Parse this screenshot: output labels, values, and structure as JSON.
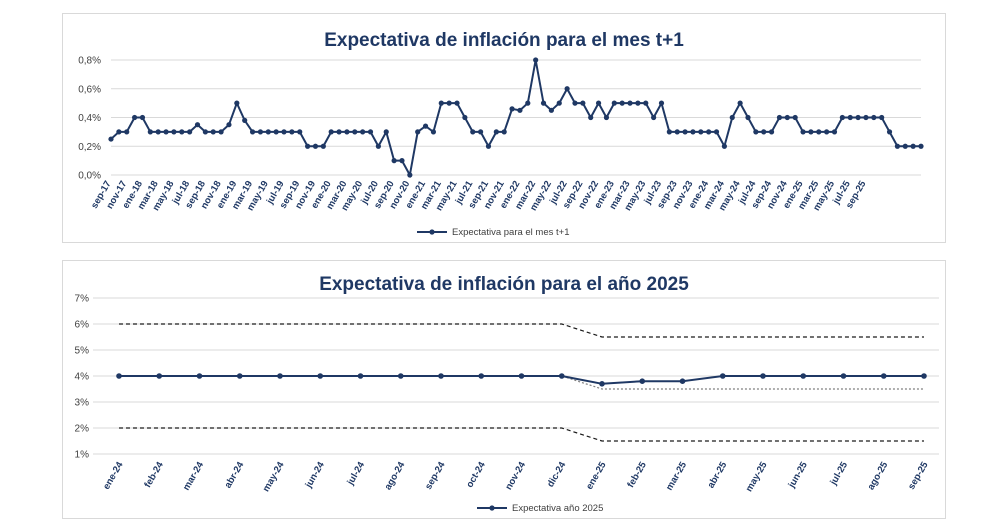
{
  "chart_data": [
    {
      "type": "line",
      "title": "Expectativa de inflación para el mes t+1",
      "ylim": [
        0,
        0.8
      ],
      "yticks": [
        "0,0%",
        "0,2%",
        "0,4%",
        "0,6%",
        "0,8%"
      ],
      "grid": true,
      "legend_position": "bottom",
      "x_tick_labels": [
        "sep-17",
        "nov-17",
        "ene-18",
        "mar-18",
        "may-18",
        "jul-18",
        "sep-18",
        "nov-18",
        "ene-19",
        "mar-19",
        "may-19",
        "jul-19",
        "sep-19",
        "nov-19",
        "ene-20",
        "mar-20",
        "may-20",
        "jul-20",
        "sep-20",
        "nov-20",
        "ene-21",
        "mar-21",
        "may-21",
        "jul-21",
        "sep-21",
        "nov-21",
        "ene-22",
        "mar-22",
        "may-22",
        "jul-22",
        "sep-22",
        "nov-22",
        "ene-23",
        "mar-23",
        "may-23",
        "jul-23",
        "sep-23",
        "nov-23",
        "ene-24",
        "mar-24",
        "may-24",
        "jul-24",
        "sep-24",
        "nov-24",
        "ene-25",
        "mar-25",
        "may-25",
        "jul-25",
        "sep-25"
      ],
      "series": [
        {
          "name": "Expectativa para el mes t+1",
          "color": "#1f3864",
          "values": [
            0.25,
            0.3,
            0.3,
            0.4,
            0.4,
            0.3,
            0.3,
            0.3,
            0.3,
            0.3,
            0.3,
            0.35,
            0.3,
            0.3,
            0.3,
            0.35,
            0.5,
            0.38,
            0.3,
            0.3,
            0.3,
            0.3,
            0.3,
            0.3,
            0.3,
            0.2,
            0.2,
            0.2,
            0.3,
            0.3,
            0.3,
            0.3,
            0.3,
            0.3,
            0.2,
            0.3,
            0.1,
            0.1,
            0.0,
            0.3,
            0.34,
            0.3,
            0.5,
            0.5,
            0.5,
            0.4,
            0.3,
            0.3,
            0.2,
            0.3,
            0.3,
            0.46,
            0.45,
            0.5,
            0.8,
            0.5,
            0.45,
            0.5,
            0.6,
            0.5,
            0.5,
            0.4,
            0.5,
            0.4,
            0.5,
            0.5,
            0.5,
            0.5,
            0.5,
            0.4,
            0.5,
            0.3,
            0.3,
            0.3,
            0.3,
            0.3,
            0.3,
            0.3,
            0.2,
            0.4,
            0.5,
            0.4,
            0.3,
            0.3,
            0.3,
            0.4,
            0.4,
            0.4,
            0.3,
            0.3,
            0.3,
            0.3,
            0.3,
            0.4,
            0.4,
            0.4,
            0.4,
            0.4,
            0.4,
            0.3,
            0.2,
            0.2,
            0.2,
            0.2
          ]
        }
      ]
    },
    {
      "type": "line",
      "title": "Expectativa de inflación para el año 2025",
      "ylim": [
        1,
        7
      ],
      "yticks": [
        "1%",
        "2%",
        "3%",
        "4%",
        "5%",
        "6%",
        "7%"
      ],
      "grid": true,
      "legend_position": "bottom",
      "categories": [
        "ene-24",
        "feb-24",
        "mar-24",
        "abr-24",
        "may-24",
        "jun-24",
        "jul-24",
        "ago-24",
        "sep-24",
        "oct-24",
        "nov-24",
        "dic-24",
        "ene-25",
        "feb-25",
        "mar-25",
        "abr-25",
        "may-25",
        "jun-25",
        "jul-25",
        "ago-25",
        "sep-25"
      ],
      "series": [
        {
          "name": "Expectativa año 2025",
          "color": "#1f3864",
          "values": [
            4,
            4,
            4,
            4,
            4,
            4,
            4,
            4,
            4,
            4,
            4,
            4,
            3.7,
            3.8,
            3.8,
            4,
            4,
            4,
            4,
            4,
            4
          ]
        }
      ],
      "reference_lines": [
        {
          "style": "dashed",
          "color": "#1a1a1a",
          "values": [
            6,
            6,
            6,
            6,
            6,
            6,
            6,
            6,
            6,
            6,
            6,
            6,
            5.5,
            5.5,
            5.5,
            5.5,
            5.5,
            5.5,
            5.5,
            5.5,
            5.5
          ]
        },
        {
          "style": "dashed",
          "color": "#1a1a1a",
          "values": [
            2,
            2,
            2,
            2,
            2,
            2,
            2,
            2,
            2,
            2,
            2,
            2,
            1.5,
            1.5,
            1.5,
            1.5,
            1.5,
            1.5,
            1.5,
            1.5,
            1.5
          ]
        },
        {
          "style": "dotted",
          "color": "#7f7f7f",
          "values": [
            4,
            4,
            4,
            4,
            4,
            4,
            4,
            4,
            4,
            4,
            4,
            4,
            3.5,
            3.5,
            3.5,
            3.5,
            3.5,
            3.5,
            3.5,
            3.5,
            3.5
          ]
        }
      ]
    }
  ]
}
